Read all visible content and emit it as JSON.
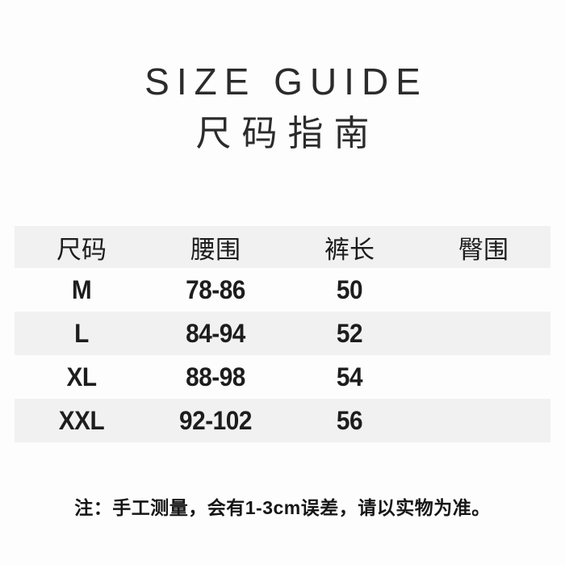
{
  "header": {
    "title_en": "SIZE GUIDE",
    "title_zh": "尺码指南"
  },
  "table": {
    "headers": [
      "尺码",
      "腰围",
      "裤长",
      "臀围"
    ],
    "rows": [
      {
        "size": "M",
        "waist": "78-86",
        "length": "50",
        "hip": ""
      },
      {
        "size": "L",
        "waist": "84-94",
        "length": "52",
        "hip": ""
      },
      {
        "size": "XL",
        "waist": "88-98",
        "length": "54",
        "hip": ""
      },
      {
        "size": "XXL",
        "waist": "92-102",
        "length": "56",
        "hip": ""
      }
    ]
  },
  "footer": {
    "note": "注：手工测量，会有1-3cm误差，请以实物为准。"
  },
  "colors": {
    "background": "#fdfdfd",
    "stripe": "#f1f1f1",
    "text": "#1f1f1f"
  },
  "chart_data": {
    "type": "table",
    "title": "SIZE GUIDE",
    "subtitle": "尺码指南",
    "columns": [
      "尺码",
      "腰围",
      "裤长",
      "臀围"
    ],
    "rows": [
      [
        "M",
        "78-86",
        "50",
        ""
      ],
      [
        "L",
        "84-94",
        "52",
        ""
      ],
      [
        "XL",
        "88-98",
        "54",
        ""
      ],
      [
        "XXL",
        "92-102",
        "56",
        ""
      ]
    ],
    "note": "注：手工测量，会有1-3cm误差，请以实物为准。",
    "layout": {
      "striped_rows": true,
      "striped_row_indices": [
        "header",
        "L",
        "XXL"
      ],
      "stripe_color": "#f1f1f1",
      "text_align": "center"
    }
  }
}
